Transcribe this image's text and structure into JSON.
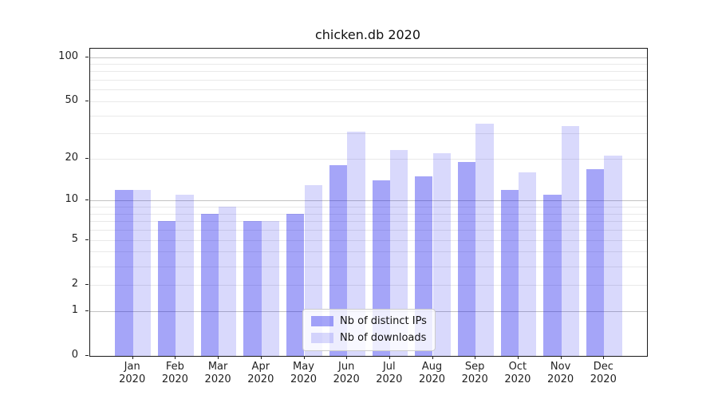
{
  "title": "chicken.db 2020",
  "chart_data": {
    "type": "bar",
    "title": "chicken.db 2020",
    "xlabel": "",
    "ylabel": "",
    "yscale": "log1p",
    "ylim": [
      0,
      114
    ],
    "yticks": [
      0,
      1,
      2,
      5,
      10,
      20,
      50,
      100
    ],
    "major_gridlines": [
      1,
      10,
      100
    ],
    "minor_gridlines": [
      2,
      3,
      4,
      5,
      6,
      7,
      8,
      9,
      20,
      30,
      40,
      50,
      60,
      70,
      80,
      90
    ],
    "categories": [
      "Jan 2020",
      "Feb 2020",
      "Mar 2020",
      "Apr 2020",
      "May 2020",
      "Jun 2020",
      "Jul 2020",
      "Aug 2020",
      "Sep 2020",
      "Oct 2020",
      "Nov 2020",
      "Dec 2020"
    ],
    "series": [
      {
        "id": "distinct-ips",
        "name": "Nb of distinct IPs",
        "color": "rgba(10,10,235,0.37)",
        "values": [
          12,
          7,
          8,
          7,
          8,
          18,
          14,
          15,
          19,
          12,
          11,
          17
        ]
      },
      {
        "id": "downloads",
        "name": "Nb of downloads",
        "color": "rgba(10,10,235,0.155)",
        "values": [
          12,
          11,
          9,
          7,
          13,
          31,
          23,
          22,
          35,
          16,
          34,
          21
        ]
      }
    ],
    "legend": {
      "position": "lower center"
    }
  },
  "colors": {
    "bar_distinct_ips": "rgba(10,10,235,0.37)",
    "bar_downloads": "rgba(10,10,235,0.155)",
    "major_grid": "#c3c3c3",
    "minor_grid": "#e9e9e9",
    "spine": "#1a1a1a",
    "text": "#222222",
    "background": "#ffffff"
  }
}
